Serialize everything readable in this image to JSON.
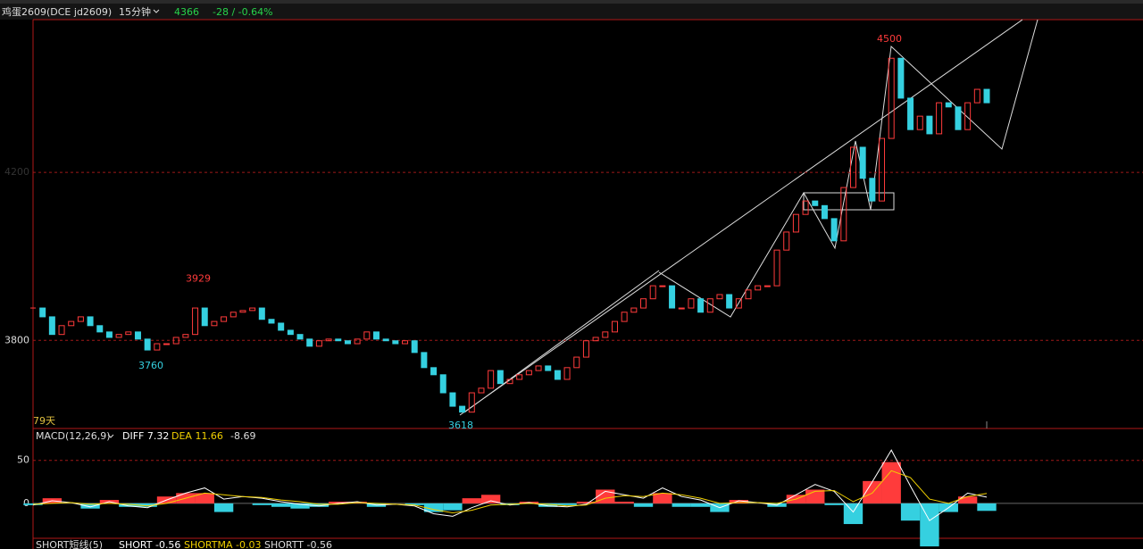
{
  "chart_data": [
    {
      "type": "candlestick",
      "symbol": "鸡蛋2609(DCE jd2609)",
      "period": "15分钟",
      "last_price": 4366,
      "change": "-28 / -0.64%",
      "span_label": "79天",
      "annotations": [
        4500,
        3929,
        3760,
        3618
      ],
      "values": [
        3877,
        3856,
        3814,
        3835,
        3845,
        3856,
        3835,
        3820,
        3807,
        3814,
        3820,
        3803,
        3777,
        3792,
        3792,
        3807,
        3814,
        3877,
        3835,
        3845,
        3856,
        3867,
        3871,
        3877,
        3850,
        3841,
        3824,
        3814,
        3803,
        3786,
        3799,
        3803,
        3799,
        3792,
        3803,
        3820,
        3803,
        3799,
        3792,
        3799,
        3771,
        3735,
        3718,
        3675,
        3643,
        3629,
        3675,
        3686,
        3728,
        3697,
        3707,
        3718,
        3728,
        3739,
        3728,
        3707,
        3735,
        3760,
        3799,
        3807,
        3820,
        3845,
        3867,
        3877,
        3899,
        3930,
        3930,
        3877,
        3877,
        3899,
        3867,
        3899,
        3909,
        3877,
        3899,
        3920,
        3930,
        3930,
        4015,
        4058,
        4100,
        4132,
        4121,
        4090,
        4037,
        4164,
        4260,
        4186,
        4132,
        4281,
        4472,
        4377,
        4302,
        4334,
        4292,
        4366,
        4356,
        4302,
        4366,
        4398,
        4366
      ],
      "up_color": "#ff3b3b",
      "down_color": "#35d0e0",
      "ylim": [
        3590,
        4564
      ],
      "yticks": [
        3800,
        4200
      ],
      "grid": true
    },
    {
      "type": "macd",
      "title": "MACD(12,26,9)",
      "diff_label": "DIFF 7.32",
      "dea_label": "DEA 11.66",
      "macd_label": "-8.69",
      "series": [
        {
          "name": "DIFF",
          "color": "#ffffff",
          "values": [
            -2,
            3,
            1,
            -4,
            2,
            -3,
            -5,
            4,
            12,
            18,
            5,
            8,
            6,
            2,
            -1,
            -3,
            0,
            2,
            -2,
            -1,
            -3,
            -12,
            -15,
            -5,
            3,
            -2,
            1,
            -3,
            -4,
            -1,
            14,
            10,
            6,
            18,
            8,
            4,
            -5,
            3,
            1,
            -2,
            10,
            22,
            14,
            -10,
            25,
            62,
            20,
            -20,
            -5,
            12,
            7.32
          ]
        },
        {
          "name": "DEA",
          "color": "#f0d000",
          "values": [
            -1,
            0,
            1,
            -1,
            0,
            -1,
            -3,
            0,
            6,
            12,
            10,
            8,
            7,
            4,
            2,
            -1,
            -1,
            1,
            0,
            -1,
            -2,
            -7,
            -11,
            -8,
            -2,
            -1,
            0,
            -1,
            -3,
            -2,
            6,
            9,
            8,
            12,
            10,
            6,
            0,
            1,
            1,
            0,
            5,
            14,
            15,
            2,
            12,
            38,
            30,
            5,
            0,
            8,
            11.66
          ]
        },
        {
          "name": "MACD",
          "color": "#ff3b3b",
          "down_color": "#35d0e0",
          "values": [
            -2,
            6,
            0,
            -6,
            4,
            -4,
            -4,
            8,
            12,
            12,
            -10,
            0,
            -2,
            -4,
            -6,
            -4,
            2,
            2,
            -4,
            0,
            -2,
            -10,
            -8,
            6,
            10,
            -2,
            2,
            -4,
            -2,
            2,
            16,
            2,
            -4,
            12,
            -4,
            -4,
            -10,
            4,
            0,
            -4,
            10,
            16,
            -2,
            -24,
            26,
            48,
            -20,
            -50,
            -10,
            8,
            -8.69
          ]
        }
      ],
      "ylim": [
        -53,
        85
      ],
      "yticks": [
        0,
        50
      ],
      "grid": true
    },
    {
      "type": "indicator",
      "title": "SHORT短线(5)",
      "labels": [
        "SHORT -0.56",
        "SHORTMA -0.03",
        "SHORTT -0.56"
      ]
    }
  ]
}
